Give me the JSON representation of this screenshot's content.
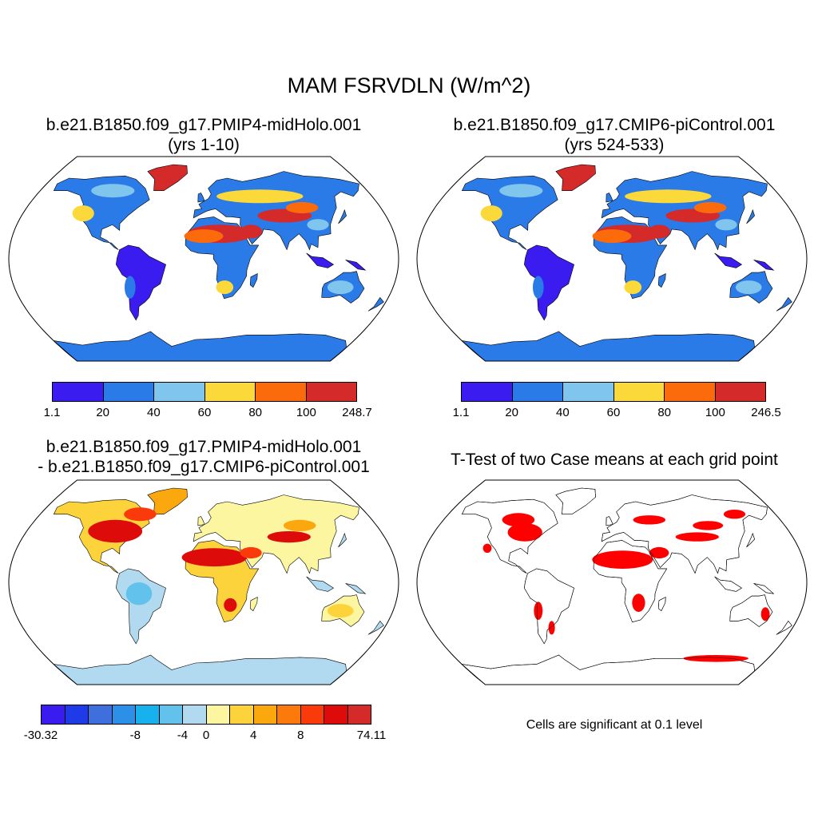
{
  "figure": {
    "title": "MAM FSRVDLN (W/m^2)"
  },
  "panels": [
    {
      "title_line1": "b.e21.B1850.f09_g17.PMIP4-midHolo.001",
      "title_line2": "(yrs 1-10)",
      "colorbar": {
        "colors": [
          "#3a1cf0",
          "#2a7ae8",
          "#7fc5ee",
          "#fcd93b",
          "#fb6a0b",
          "#d42a2a"
        ],
        "ticks": [
          "1.1",
          "20",
          "40",
          "60",
          "80",
          "100",
          "248.7"
        ]
      }
    },
    {
      "title_line1": "b.e21.B1850.f09_g17.CMIP6-piControl.001",
      "title_line2": "(yrs 524-533)",
      "colorbar": {
        "colors": [
          "#3a1cf0",
          "#2a7ae8",
          "#7fc5ee",
          "#fcd93b",
          "#fb6a0b",
          "#d42a2a"
        ],
        "ticks": [
          "1.1",
          "20",
          "40",
          "60",
          "80",
          "100",
          "246.5"
        ]
      }
    },
    {
      "title_line1": "b.e21.B1850.f09_g17.PMIP4-midHolo.001",
      "title_line2": "- b.e21.B1850.f09_g17.CMIP6-piControl.001",
      "colorbar": {
        "colors": [
          "#3a1cf0",
          "#1f3be8",
          "#3f6fdc",
          "#2c8fe8",
          "#17b1ee",
          "#63c2ec",
          "#b1daf0",
          "#fcf6a0",
          "#fcd33b",
          "#fba80f",
          "#fb7a0b",
          "#fb3a0b",
          "#de0b0b",
          "#d42a2a"
        ],
        "ticks": [
          "-30.32",
          "-8",
          "-4",
          "0",
          "4",
          "8",
          "74.11"
        ]
      }
    },
    {
      "title_line1": "T-Test of two Case means at each grid point",
      "note": "Cells are significant at 0.1 level",
      "signif_color": "#ff0000"
    }
  ]
}
